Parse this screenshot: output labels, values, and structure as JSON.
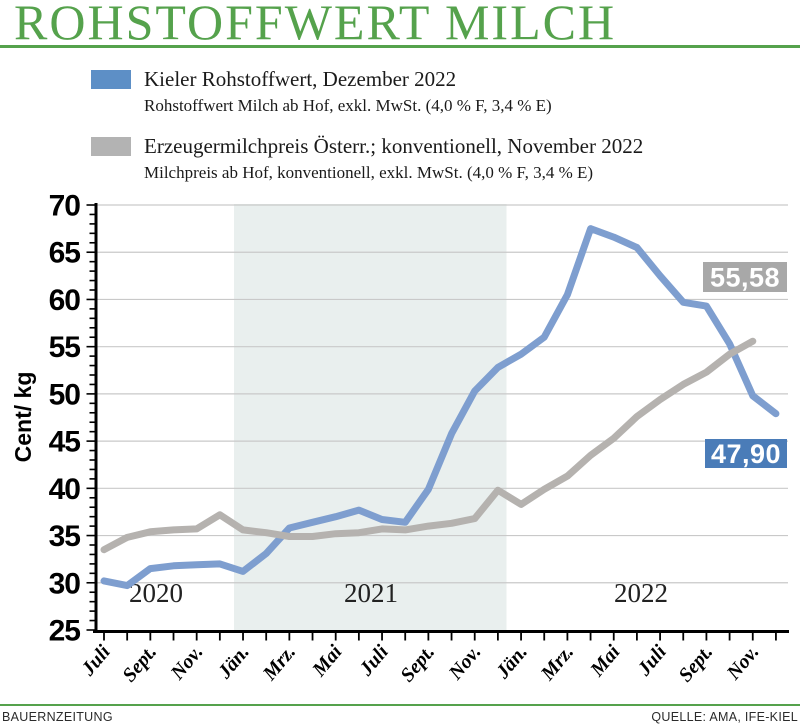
{
  "title": "ROHSTOFFWERT MILCH",
  "legend": {
    "items": [
      {
        "label": "Kieler Rohstoffwert, Dezember 2022",
        "sublabel": "Rohstoffwert Milch ab Hof, exkl. MwSt. (4,0 % F, 3,4 % E)",
        "swatch_color": "#5d8fc6"
      },
      {
        "label": "Erzeugermilchpreis Österr.; konventionell, November 2022",
        "sublabel": "Milchpreis ab Hof, konventionell, exkl. MwSt. (4,0 % F, 3,4 % E)",
        "swatch_color": "#b3b3b3"
      }
    ]
  },
  "chart_data": {
    "type": "line",
    "ylabel": "Cent/ kg",
    "ylim": [
      25,
      70
    ],
    "ytick_step": 5,
    "grid": true,
    "x_tick_labels": [
      "Juli",
      "Sept.",
      "Nov.",
      "Jän.",
      "Mrz.",
      "Mai",
      "Juli",
      "Sept.",
      "Nov.",
      "Jän.",
      "Mrz.",
      "Mai",
      "Juli",
      "Sept.",
      "Nov."
    ],
    "year_labels": [
      "2020",
      "2021",
      "2022"
    ],
    "months": [
      "Juli 2020",
      "Aug. 2020",
      "Sept. 2020",
      "Okt. 2020",
      "Nov. 2020",
      "Dez. 2020",
      "Jän. 2021",
      "Feb. 2021",
      "Mrz. 2021",
      "Apr. 2021",
      "Mai 2021",
      "Juni 2021",
      "Juli 2021",
      "Aug. 2021",
      "Sept. 2021",
      "Okt. 2021",
      "Nov. 2021",
      "Dez. 2021",
      "Jän. 2022",
      "Feb. 2022",
      "Mrz. 2022",
      "Apr. 2022",
      "Mai 2022",
      "Juni 2022",
      "Juli 2022",
      "Aug. 2022",
      "Sept. 2022",
      "Okt. 2022",
      "Nov. 2022",
      "Dez. 2022"
    ],
    "series": [
      {
        "name": "Kieler Rohstoffwert",
        "color": "#7e9ecf",
        "end_label": "47,90",
        "end_label_box_color": "#4a7cb8",
        "values": [
          30.2,
          29.7,
          31.5,
          31.8,
          31.9,
          32.0,
          31.2,
          33.1,
          35.8,
          36.4,
          37.0,
          37.7,
          36.7,
          36.4,
          39.9,
          45.8,
          50.3,
          52.8,
          54.2,
          56.0,
          60.5,
          67.5,
          66.6,
          65.5,
          62.5,
          59.7,
          59.3,
          55.3,
          49.8,
          47.9
        ]
      },
      {
        "name": "Erzeugermilchpreis Österreich konventionell",
        "color": "#b5b2af",
        "end_label": "55,58",
        "end_label_box_color": "#a8a8a8",
        "values": [
          33.5,
          34.8,
          35.4,
          35.6,
          35.7,
          37.2,
          35.6,
          35.3,
          34.9,
          34.9,
          35.2,
          35.3,
          35.7,
          35.6,
          36.0,
          36.3,
          36.8,
          39.8,
          38.3,
          39.9,
          41.3,
          43.5,
          45.3,
          47.6,
          49.4,
          51.0,
          52.3,
          54.2,
          55.58
        ]
      }
    ],
    "highlight_band": {
      "from": "Jän. 2021",
      "to": "Dez. 2021",
      "color": "#e9efee"
    }
  },
  "footer": {
    "left": "BAUERNZEITUNG",
    "right": "QUELLE: AMA, IFE-KIEL"
  }
}
